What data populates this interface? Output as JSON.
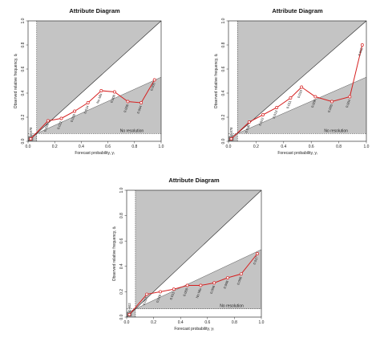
{
  "chart_data": [
    {
      "type": "scatter",
      "title": "Attribute Diagram",
      "xlabel": "Forecast probability, yᵢ",
      "ylabel": "Observed relative frequency, ōᵢ",
      "xlim": [
        0,
        1
      ],
      "ylim": [
        0,
        1
      ],
      "x_ticks": [
        "0.0",
        "0.2",
        "0.4",
        "0.6",
        "0.8",
        "1.0"
      ],
      "y_ticks": [
        "0.0",
        "0.2",
        "0.4",
        "0.6",
        "0.8",
        "1.0"
      ],
      "climatology": 0.065,
      "no_resolution_label": "No resolution",
      "points": [
        {
          "x": 0.02,
          "y": 0.02,
          "label": "0.878"
        },
        {
          "x": 0.15,
          "y": 0.17,
          "label": "0.026"
        },
        {
          "x": 0.25,
          "y": 0.19,
          "label": "0.022"
        },
        {
          "x": 0.35,
          "y": 0.25,
          "label": "0.016"
        },
        {
          "x": 0.45,
          "y": 0.32,
          "label": "0.014"
        },
        {
          "x": 0.55,
          "y": 0.42,
          "label": "No Mis"
        },
        {
          "x": 0.65,
          "y": 0.41,
          "label": "0.008"
        },
        {
          "x": 0.75,
          "y": 0.33,
          "label": "0.006"
        },
        {
          "x": 0.85,
          "y": 0.32,
          "label": "0.004"
        },
        {
          "x": 0.95,
          "y": 0.51,
          "label": "0.005"
        }
      ]
    },
    {
      "type": "scatter",
      "title": "Attribute Diagram",
      "xlabel": "Forecast probability, yᵢ",
      "ylabel": "Observed relative frequency, ōᵢ",
      "xlim": [
        0,
        1
      ],
      "ylim": [
        0,
        1
      ],
      "x_ticks": [
        "0.0",
        "0.2",
        "0.4",
        "0.6",
        "0.8",
        "1.0"
      ],
      "y_ticks": [
        "0.0",
        "0.2",
        "0.4",
        "0.6",
        "0.8",
        "1.0"
      ],
      "climatology": 0.065,
      "no_resolution_label": "No resolution",
      "points": [
        {
          "x": 0.02,
          "y": 0.02,
          "label": "0.878"
        },
        {
          "x": 0.15,
          "y": 0.16,
          "label": "0.036"
        },
        {
          "x": 0.25,
          "y": 0.22,
          "label": "0.022"
        },
        {
          "x": 0.35,
          "y": 0.28,
          "label": "0.013"
        },
        {
          "x": 0.45,
          "y": 0.36,
          "label": "0.011"
        },
        {
          "x": 0.53,
          "y": 0.45,
          "label": "0.010"
        },
        {
          "x": 0.63,
          "y": 0.37,
          "label": "0.008"
        },
        {
          "x": 0.75,
          "y": 0.33,
          "label": "0.005"
        },
        {
          "x": 0.88,
          "y": 0.37,
          "label": "0.004"
        },
        {
          "x": 0.97,
          "y": 0.8,
          "label": "0.002"
        }
      ]
    },
    {
      "type": "scatter",
      "title": "Attribute Diagram",
      "xlabel": "Forecast probability, yᵢ",
      "ylabel": "Observed relative frequency, ōᵢ",
      "xlim": [
        0,
        1
      ],
      "ylim": [
        0,
        1
      ],
      "x_ticks": [
        "0.0",
        "0.2",
        "0.4",
        "0.6",
        "0.8",
        "1.0"
      ],
      "y_ticks": [
        "0.0",
        "0.2",
        "0.4",
        "0.6",
        "0.8",
        "1.0"
      ],
      "climatology": 0.065,
      "no_resolution_label": "No resolution",
      "points": [
        {
          "x": 0.02,
          "y": 0.02,
          "label": "0.902"
        },
        {
          "x": 0.15,
          "y": 0.18,
          "label": "0.017"
        },
        {
          "x": 0.25,
          "y": 0.2,
          "label": "0.016"
        },
        {
          "x": 0.35,
          "y": 0.22,
          "label": "0.011"
        },
        {
          "x": 0.45,
          "y": 0.25,
          "label": "0.009"
        },
        {
          "x": 0.55,
          "y": 0.25,
          "label": "No Mis"
        },
        {
          "x": 0.65,
          "y": 0.27,
          "label": "0.006"
        },
        {
          "x": 0.75,
          "y": 0.31,
          "label": "0.006"
        },
        {
          "x": 0.85,
          "y": 0.34,
          "label": "0.006"
        },
        {
          "x": 0.97,
          "y": 0.5,
          "label": "0.017"
        }
      ]
    }
  ]
}
